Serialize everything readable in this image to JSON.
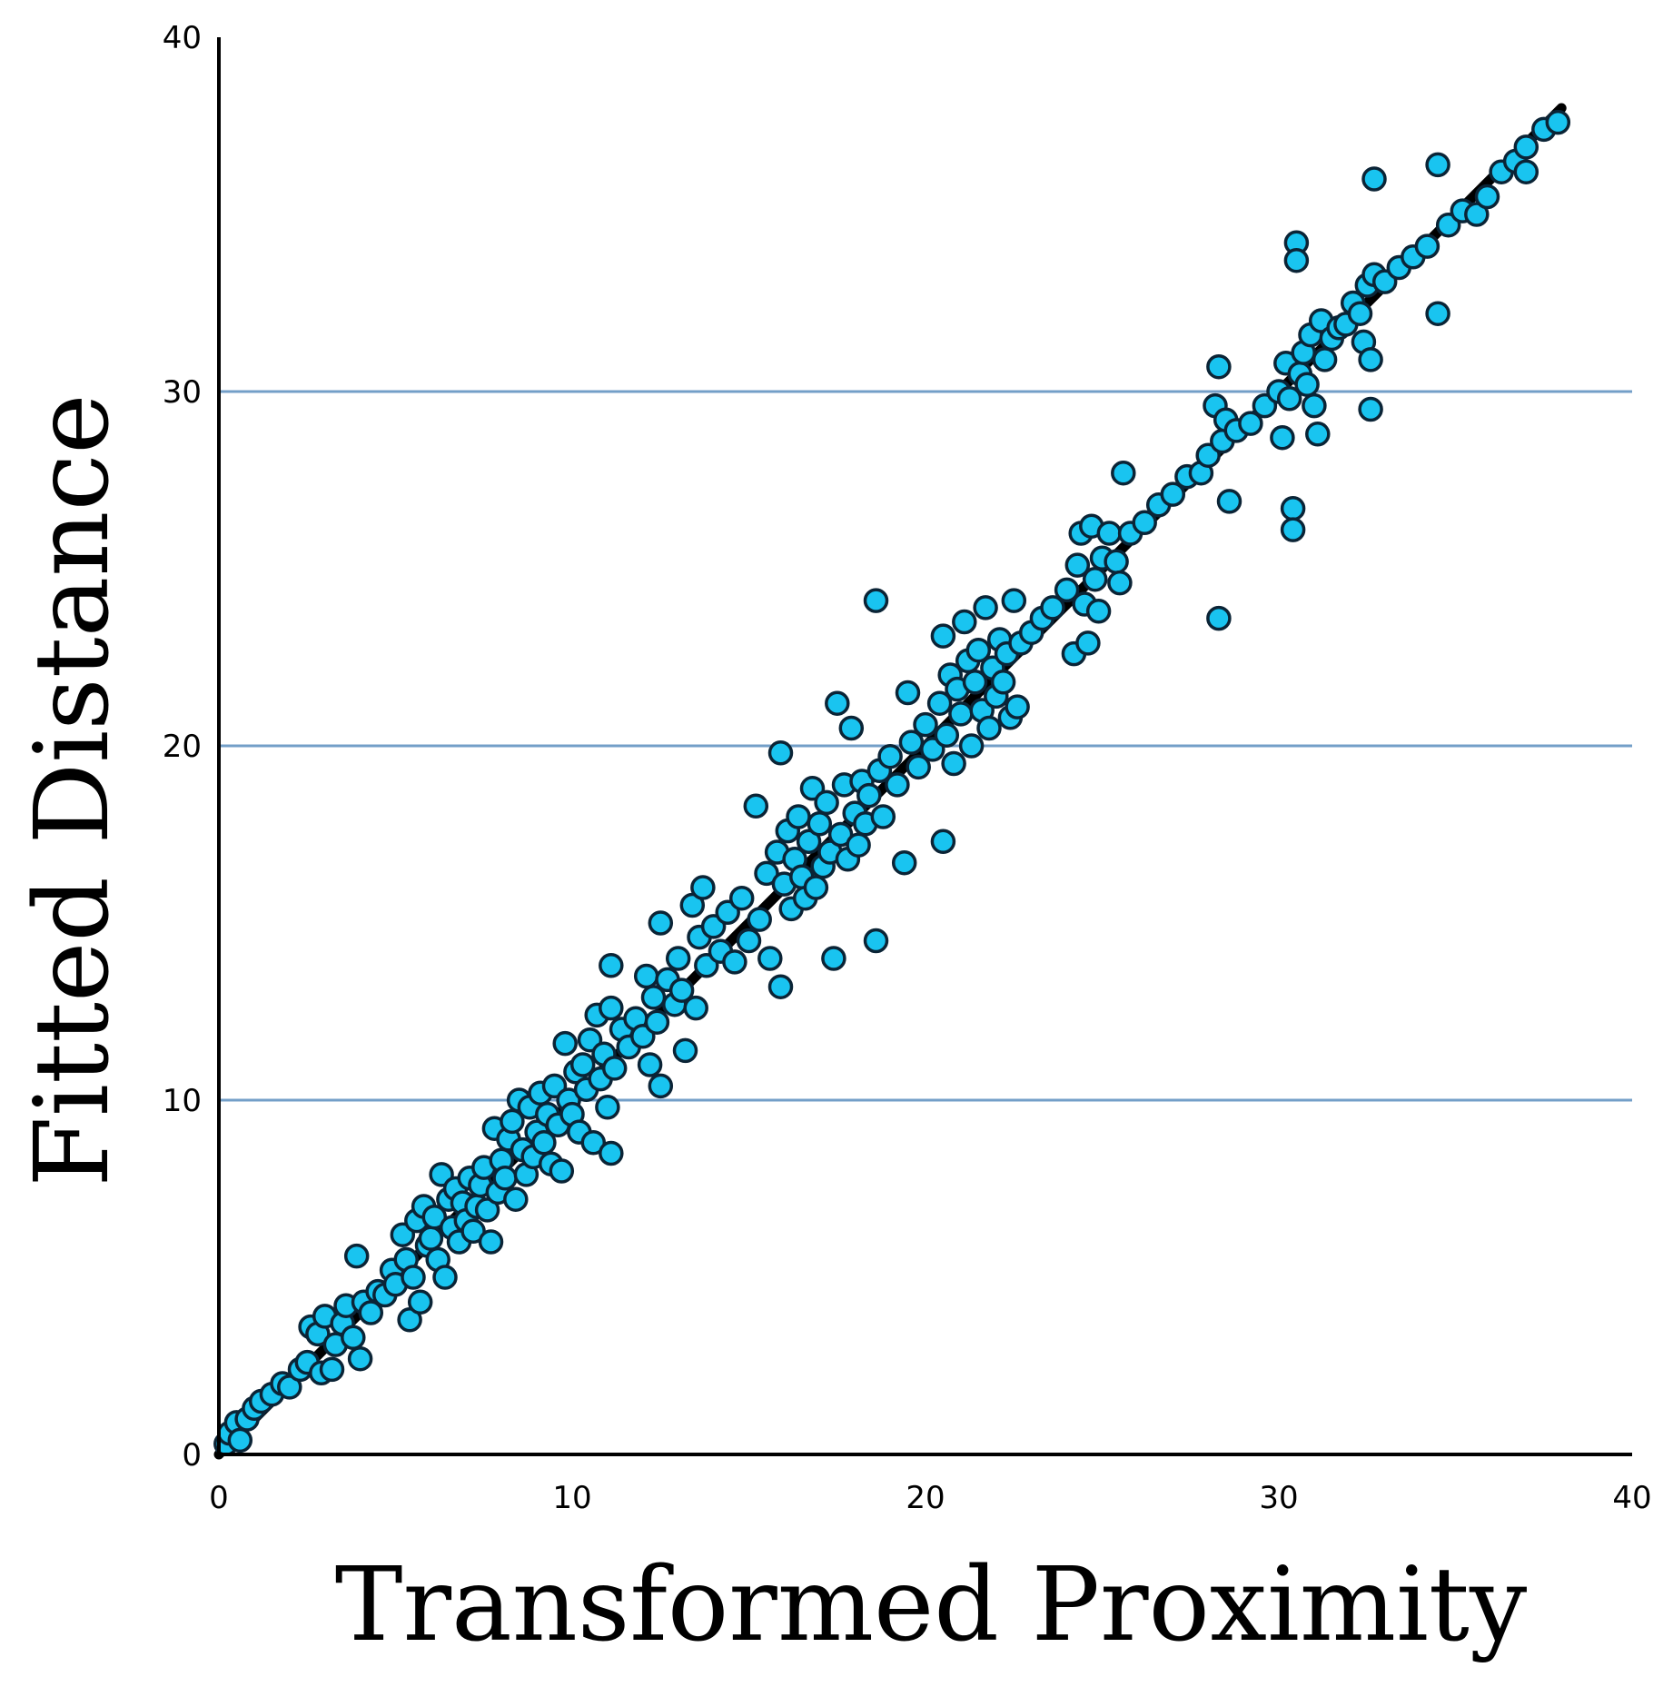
{
  "chart_data": {
    "type": "scatter",
    "title": "",
    "xlabel": "Transformed Proximity",
    "ylabel": "Fitted Distance",
    "xlim": [
      0,
      40
    ],
    "ylim": [
      0,
      40
    ],
    "xticks": [
      "0",
      "10",
      "20",
      "30",
      "40"
    ],
    "yticks": [
      "0",
      "10",
      "20",
      "30",
      "40"
    ],
    "gridlines_y": [
      10,
      20,
      30
    ],
    "grid_color": "#5b8fbf",
    "point_fill": "#19c4f0",
    "point_stroke": "#0b2436",
    "fit_line": {
      "x": [
        0,
        38
      ],
      "y": [
        0,
        38
      ],
      "color": "#000000"
    },
    "series": [
      {
        "values": [
          [
            0.2,
            0.3
          ],
          [
            0.3,
            0.6
          ],
          [
            0.5,
            0.9
          ],
          [
            0.6,
            0.4
          ],
          [
            0.8,
            1.0
          ],
          [
            1.0,
            1.3
          ],
          [
            1.2,
            1.5
          ],
          [
            1.5,
            1.7
          ],
          [
            1.8,
            2.0
          ],
          [
            2.0,
            1.9
          ],
          [
            2.3,
            2.4
          ],
          [
            2.5,
            2.6
          ],
          [
            2.6,
            3.6
          ],
          [
            2.8,
            3.4
          ],
          [
            2.9,
            2.3
          ],
          [
            3.0,
            3.9
          ],
          [
            3.2,
            2.4
          ],
          [
            3.3,
            3.1
          ],
          [
            3.5,
            3.7
          ],
          [
            3.6,
            4.2
          ],
          [
            3.8,
            3.3
          ],
          [
            3.9,
            5.6
          ],
          [
            4.0,
            2.7
          ],
          [
            4.1,
            4.3
          ],
          [
            4.3,
            4.0
          ],
          [
            4.5,
            4.6
          ],
          [
            4.7,
            4.5
          ],
          [
            4.9,
            5.2
          ],
          [
            5.0,
            4.8
          ],
          [
            5.2,
            6.2
          ],
          [
            5.3,
            5.5
          ],
          [
            5.4,
            3.8
          ],
          [
            5.5,
            5.0
          ],
          [
            5.6,
            6.6
          ],
          [
            5.7,
            4.3
          ],
          [
            5.8,
            7.0
          ],
          [
            5.9,
            5.9
          ],
          [
            6.0,
            6.1
          ],
          [
            6.1,
            6.7
          ],
          [
            6.2,
            5.5
          ],
          [
            6.3,
            7.9
          ],
          [
            6.4,
            5.0
          ],
          [
            6.5,
            7.2
          ],
          [
            6.6,
            6.4
          ],
          [
            6.7,
            7.5
          ],
          [
            6.8,
            6.0
          ],
          [
            6.9,
            7.1
          ],
          [
            7.0,
            6.6
          ],
          [
            7.1,
            7.8
          ],
          [
            7.2,
            6.3
          ],
          [
            7.3,
            7.0
          ],
          [
            7.4,
            7.6
          ],
          [
            7.5,
            8.1
          ],
          [
            7.6,
            6.9
          ],
          [
            7.7,
            6.0
          ],
          [
            7.8,
            9.2
          ],
          [
            7.9,
            7.4
          ],
          [
            8.0,
            8.3
          ],
          [
            8.1,
            7.8
          ],
          [
            8.2,
            8.9
          ],
          [
            8.3,
            9.4
          ],
          [
            8.4,
            7.2
          ],
          [
            8.5,
            10.0
          ],
          [
            8.6,
            8.6
          ],
          [
            8.7,
            7.9
          ],
          [
            8.8,
            9.8
          ],
          [
            8.9,
            8.4
          ],
          [
            9.0,
            9.1
          ],
          [
            9.1,
            10.2
          ],
          [
            9.2,
            8.8
          ],
          [
            9.3,
            9.6
          ],
          [
            9.4,
            8.2
          ],
          [
            9.5,
            10.4
          ],
          [
            9.6,
            9.3
          ],
          [
            9.7,
            8.0
          ],
          [
            9.8,
            11.6
          ],
          [
            9.9,
            10.0
          ],
          [
            10.0,
            9.6
          ],
          [
            10.1,
            10.8
          ],
          [
            10.2,
            9.1
          ],
          [
            10.3,
            11.0
          ],
          [
            10.4,
            10.3
          ],
          [
            10.5,
            11.7
          ],
          [
            10.6,
            8.8
          ],
          [
            10.7,
            12.4
          ],
          [
            10.8,
            10.6
          ],
          [
            10.9,
            11.3
          ],
          [
            11.0,
            9.8
          ],
          [
            11.1,
            12.6
          ],
          [
            11.1,
            13.8
          ],
          [
            11.1,
            8.5
          ],
          [
            11.2,
            10.9
          ],
          [
            11.4,
            12.0
          ],
          [
            11.6,
            11.5
          ],
          [
            11.8,
            12.3
          ],
          [
            12.0,
            11.8
          ],
          [
            12.1,
            13.5
          ],
          [
            12.2,
            11.0
          ],
          [
            12.3,
            12.9
          ],
          [
            12.4,
            12.2
          ],
          [
            12.5,
            15.0
          ],
          [
            12.5,
            10.4
          ],
          [
            12.7,
            13.4
          ],
          [
            12.9,
            12.7
          ],
          [
            13.0,
            14.0
          ],
          [
            13.1,
            13.1
          ],
          [
            13.2,
            11.4
          ],
          [
            13.4,
            15.5
          ],
          [
            13.5,
            12.6
          ],
          [
            13.6,
            14.6
          ],
          [
            13.7,
            16.0
          ],
          [
            13.8,
            13.8
          ],
          [
            14.0,
            14.9
          ],
          [
            14.2,
            14.2
          ],
          [
            14.4,
            15.3
          ],
          [
            14.6,
            13.9
          ],
          [
            14.8,
            15.7
          ],
          [
            15.0,
            14.5
          ],
          [
            15.2,
            18.3
          ],
          [
            15.3,
            15.1
          ],
          [
            15.5,
            16.4
          ],
          [
            15.6,
            14.0
          ],
          [
            15.8,
            17.0
          ],
          [
            15.9,
            19.8
          ],
          [
            15.9,
            13.2
          ],
          [
            16.0,
            16.1
          ],
          [
            16.1,
            17.6
          ],
          [
            16.2,
            15.4
          ],
          [
            16.3,
            16.8
          ],
          [
            16.4,
            18.0
          ],
          [
            16.5,
            16.3
          ],
          [
            16.6,
            15.7
          ],
          [
            16.7,
            17.3
          ],
          [
            16.8,
            18.8
          ],
          [
            16.9,
            16.0
          ],
          [
            17.0,
            17.8
          ],
          [
            17.1,
            16.6
          ],
          [
            17.2,
            18.4
          ],
          [
            17.3,
            17.0
          ],
          [
            17.4,
            14.0
          ],
          [
            17.5,
            21.2
          ],
          [
            17.6,
            17.5
          ],
          [
            17.7,
            18.9
          ],
          [
            17.8,
            16.8
          ],
          [
            17.9,
            20.5
          ],
          [
            18.0,
            18.1
          ],
          [
            18.1,
            17.2
          ],
          [
            18.2,
            19.0
          ],
          [
            18.3,
            17.8
          ],
          [
            18.4,
            18.6
          ],
          [
            18.6,
            24.1
          ],
          [
            18.6,
            14.5
          ],
          [
            18.7,
            19.3
          ],
          [
            18.8,
            18.0
          ],
          [
            19.0,
            19.7
          ],
          [
            19.2,
            18.9
          ],
          [
            19.4,
            16.7
          ],
          [
            19.5,
            21.5
          ],
          [
            19.6,
            20.1
          ],
          [
            19.8,
            19.4
          ],
          [
            20.0,
            20.6
          ],
          [
            20.2,
            19.9
          ],
          [
            20.4,
            21.2
          ],
          [
            20.5,
            17.3
          ],
          [
            20.5,
            23.1
          ],
          [
            20.6,
            20.3
          ],
          [
            20.7,
            22.0
          ],
          [
            20.8,
            19.5
          ],
          [
            20.9,
            21.6
          ],
          [
            21.0,
            20.9
          ],
          [
            21.1,
            23.5
          ],
          [
            21.2,
            22.4
          ],
          [
            21.3,
            20.0
          ],
          [
            21.4,
            21.8
          ],
          [
            21.5,
            22.7
          ],
          [
            21.6,
            21.0
          ],
          [
            21.7,
            23.9
          ],
          [
            21.8,
            20.5
          ],
          [
            21.9,
            22.2
          ],
          [
            22.0,
            21.4
          ],
          [
            22.1,
            23.0
          ],
          [
            22.2,
            21.8
          ],
          [
            22.3,
            22.6
          ],
          [
            22.4,
            20.8
          ],
          [
            22.5,
            24.1
          ],
          [
            22.6,
            21.1
          ],
          [
            22.7,
            22.9
          ],
          [
            23.0,
            23.2
          ],
          [
            23.3,
            23.6
          ],
          [
            23.6,
            23.9
          ],
          [
            24.0,
            24.4
          ],
          [
            24.2,
            22.6
          ],
          [
            24.3,
            25.1
          ],
          [
            24.4,
            26.0
          ],
          [
            24.5,
            24.0
          ],
          [
            24.6,
            22.9
          ],
          [
            24.7,
            26.2
          ],
          [
            24.8,
            24.7
          ],
          [
            24.9,
            23.8
          ],
          [
            25.0,
            25.3
          ],
          [
            25.2,
            26.0
          ],
          [
            25.4,
            25.2
          ],
          [
            25.5,
            24.6
          ],
          [
            25.6,
            27.7
          ],
          [
            25.8,
            26.0
          ],
          [
            26.2,
            26.3
          ],
          [
            26.6,
            26.8
          ],
          [
            27.0,
            27.1
          ],
          [
            27.4,
            27.6
          ],
          [
            27.8,
            27.7
          ],
          [
            28.0,
            28.2
          ],
          [
            28.2,
            29.6
          ],
          [
            28.3,
            30.7
          ],
          [
            28.3,
            23.6
          ],
          [
            28.4,
            28.6
          ],
          [
            28.5,
            29.2
          ],
          [
            28.6,
            26.9
          ],
          [
            28.8,
            28.9
          ],
          [
            29.2,
            29.1
          ],
          [
            29.6,
            29.6
          ],
          [
            30.0,
            30.0
          ],
          [
            30.1,
            28.7
          ],
          [
            30.2,
            30.8
          ],
          [
            30.3,
            29.8
          ],
          [
            30.4,
            26.7
          ],
          [
            30.4,
            26.1
          ],
          [
            30.5,
            34.2
          ],
          [
            30.5,
            33.7
          ],
          [
            30.6,
            30.5
          ],
          [
            30.7,
            31.1
          ],
          [
            30.8,
            30.2
          ],
          [
            30.9,
            31.6
          ],
          [
            31.0,
            29.6
          ],
          [
            31.1,
            28.8
          ],
          [
            31.2,
            32.0
          ],
          [
            31.3,
            30.9
          ],
          [
            31.5,
            31.5
          ],
          [
            31.7,
            31.8
          ],
          [
            31.9,
            31.9
          ],
          [
            32.1,
            32.5
          ],
          [
            32.3,
            32.2
          ],
          [
            32.4,
            31.4
          ],
          [
            32.5,
            33.0
          ],
          [
            32.6,
            30.9
          ],
          [
            32.6,
            29.5
          ],
          [
            32.7,
            36.0
          ],
          [
            32.7,
            33.3
          ],
          [
            33.0,
            33.1
          ],
          [
            33.4,
            33.5
          ],
          [
            33.8,
            33.8
          ],
          [
            34.2,
            34.1
          ],
          [
            34.5,
            36.4
          ],
          [
            34.5,
            32.2
          ],
          [
            34.8,
            34.7
          ],
          [
            35.2,
            35.1
          ],
          [
            35.6,
            35.0
          ],
          [
            35.9,
            35.5
          ],
          [
            36.3,
            36.2
          ],
          [
            36.7,
            36.5
          ],
          [
            37.0,
            36.9
          ],
          [
            37.0,
            36.2
          ],
          [
            37.5,
            37.4
          ],
          [
            37.9,
            37.6
          ]
        ]
      }
    ]
  }
}
